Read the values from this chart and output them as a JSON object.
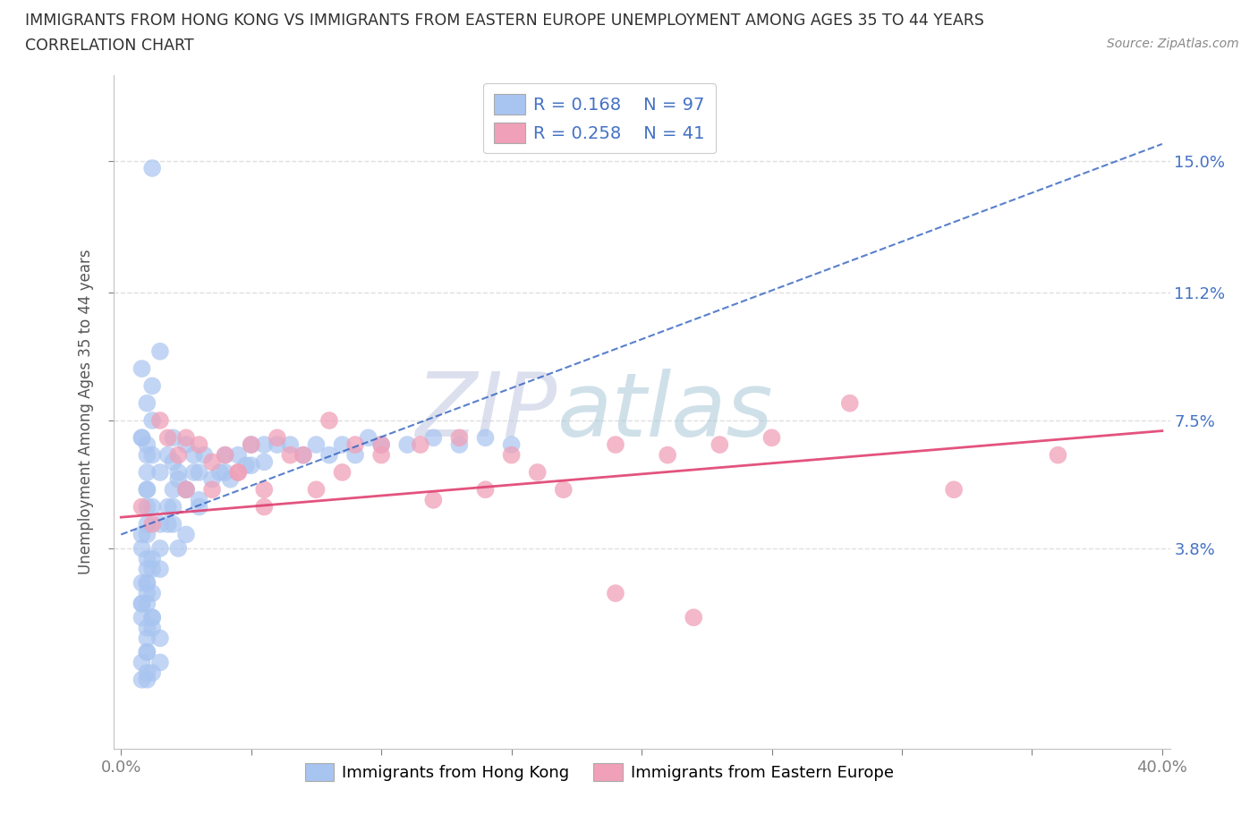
{
  "title_line1": "IMMIGRANTS FROM HONG KONG VS IMMIGRANTS FROM EASTERN EUROPE UNEMPLOYMENT AMONG AGES 35 TO 44 YEARS",
  "title_line2": "CORRELATION CHART",
  "source_text": "Source: ZipAtlas.com",
  "xlabel": "Immigrants from Hong Kong",
  "xlabel2": "Immigrants from Eastern Europe",
  "ylabel": "Unemployment Among Ages 35 to 44 years",
  "xlim": [
    -0.003,
    0.403
  ],
  "ylim": [
    -0.02,
    0.175
  ],
  "ytick_positions": [
    0.038,
    0.075,
    0.112,
    0.15
  ],
  "ytick_labels": [
    "3.8%",
    "7.5%",
    "11.2%",
    "15.0%"
  ],
  "hk_R": 0.168,
  "hk_N": 97,
  "ee_R": 0.258,
  "ee_N": 41,
  "hk_color": "#a8c4f0",
  "ee_color": "#f0a0b8",
  "hk_trend_color": "#3060c0",
  "ee_trend_color": "#e04070",
  "title_color": "#404040",
  "watermark_color_zip": "#c0c8e8",
  "watermark_color_atlas": "#b8d0e8",
  "axis_color": "#c0c0c0",
  "grid_color": "#d8d8d8",
  "legend_label_color": "#4472c4",
  "hk_x": [
    0.012,
    0.008,
    0.01,
    0.01,
    0.01,
    0.01,
    0.015,
    0.01,
    0.008,
    0.012,
    0.01,
    0.01,
    0.012,
    0.01,
    0.008,
    0.012,
    0.01,
    0.01,
    0.015,
    0.01,
    0.008,
    0.012,
    0.008,
    0.01,
    0.012,
    0.015,
    0.01,
    0.012,
    0.01,
    0.008,
    0.015,
    0.01,
    0.012,
    0.008,
    0.02,
    0.018,
    0.022,
    0.02,
    0.02,
    0.018,
    0.025,
    0.02,
    0.022,
    0.025,
    0.018,
    0.02,
    0.025,
    0.022,
    0.028,
    0.03,
    0.025,
    0.03,
    0.032,
    0.028,
    0.035,
    0.03,
    0.04,
    0.038,
    0.042,
    0.045,
    0.04,
    0.05,
    0.048,
    0.055,
    0.05,
    0.06,
    0.055,
    0.065,
    0.07,
    0.075,
    0.08,
    0.085,
    0.09,
    0.095,
    0.1,
    0.11,
    0.12,
    0.13,
    0.14,
    0.15,
    0.008,
    0.012,
    0.01,
    0.015,
    0.01,
    0.008,
    0.012,
    0.01,
    0.015,
    0.01,
    0.008,
    0.012,
    0.01,
    0.015,
    0.01,
    0.008,
    0.012
  ],
  "hk_y": [
    0.148,
    0.07,
    0.065,
    0.06,
    0.055,
    0.05,
    0.045,
    0.042,
    0.038,
    0.035,
    0.032,
    0.028,
    0.025,
    0.022,
    0.018,
    0.015,
    0.012,
    0.008,
    0.005,
    0.002,
    0.0,
    0.075,
    0.07,
    0.068,
    0.065,
    0.06,
    0.055,
    0.05,
    0.045,
    0.042,
    0.038,
    0.035,
    0.032,
    0.028,
    0.07,
    0.065,
    0.06,
    0.055,
    0.05,
    0.045,
    0.068,
    0.063,
    0.058,
    0.055,
    0.05,
    0.045,
    0.042,
    0.038,
    0.065,
    0.06,
    0.055,
    0.05,
    0.065,
    0.06,
    0.058,
    0.052,
    0.065,
    0.06,
    0.058,
    0.065,
    0.06,
    0.068,
    0.062,
    0.068,
    0.062,
    0.068,
    0.063,
    0.068,
    0.065,
    0.068,
    0.065,
    0.068,
    0.065,
    0.07,
    0.068,
    0.068,
    0.07,
    0.068,
    0.07,
    0.068,
    0.09,
    0.085,
    0.08,
    0.095,
    0.025,
    0.022,
    0.018,
    0.015,
    0.012,
    0.008,
    0.005,
    0.002,
    0.0,
    0.032,
    0.028,
    0.022,
    0.018
  ],
  "ee_x": [
    0.008,
    0.012,
    0.018,
    0.022,
    0.025,
    0.03,
    0.035,
    0.04,
    0.045,
    0.05,
    0.055,
    0.06,
    0.07,
    0.08,
    0.09,
    0.1,
    0.115,
    0.13,
    0.15,
    0.17,
    0.19,
    0.21,
    0.23,
    0.25,
    0.28,
    0.32,
    0.36,
    0.015,
    0.025,
    0.035,
    0.045,
    0.055,
    0.065,
    0.075,
    0.085,
    0.1,
    0.12,
    0.14,
    0.16,
    0.19,
    0.22
  ],
  "ee_y": [
    0.05,
    0.045,
    0.07,
    0.065,
    0.055,
    0.068,
    0.063,
    0.065,
    0.06,
    0.068,
    0.055,
    0.07,
    0.065,
    0.075,
    0.068,
    0.065,
    0.068,
    0.07,
    0.065,
    0.055,
    0.068,
    0.065,
    0.068,
    0.07,
    0.08,
    0.055,
    0.065,
    0.075,
    0.07,
    0.055,
    0.06,
    0.05,
    0.065,
    0.055,
    0.06,
    0.068,
    0.052,
    0.055,
    0.06,
    0.025,
    0.018
  ],
  "hk_trend_x0": 0.0,
  "hk_trend_y0": 0.042,
  "hk_trend_x1": 0.4,
  "hk_trend_y1": 0.155,
  "ee_trend_x0": 0.0,
  "ee_trend_y0": 0.047,
  "ee_trend_x1": 0.4,
  "ee_trend_y1": 0.072
}
